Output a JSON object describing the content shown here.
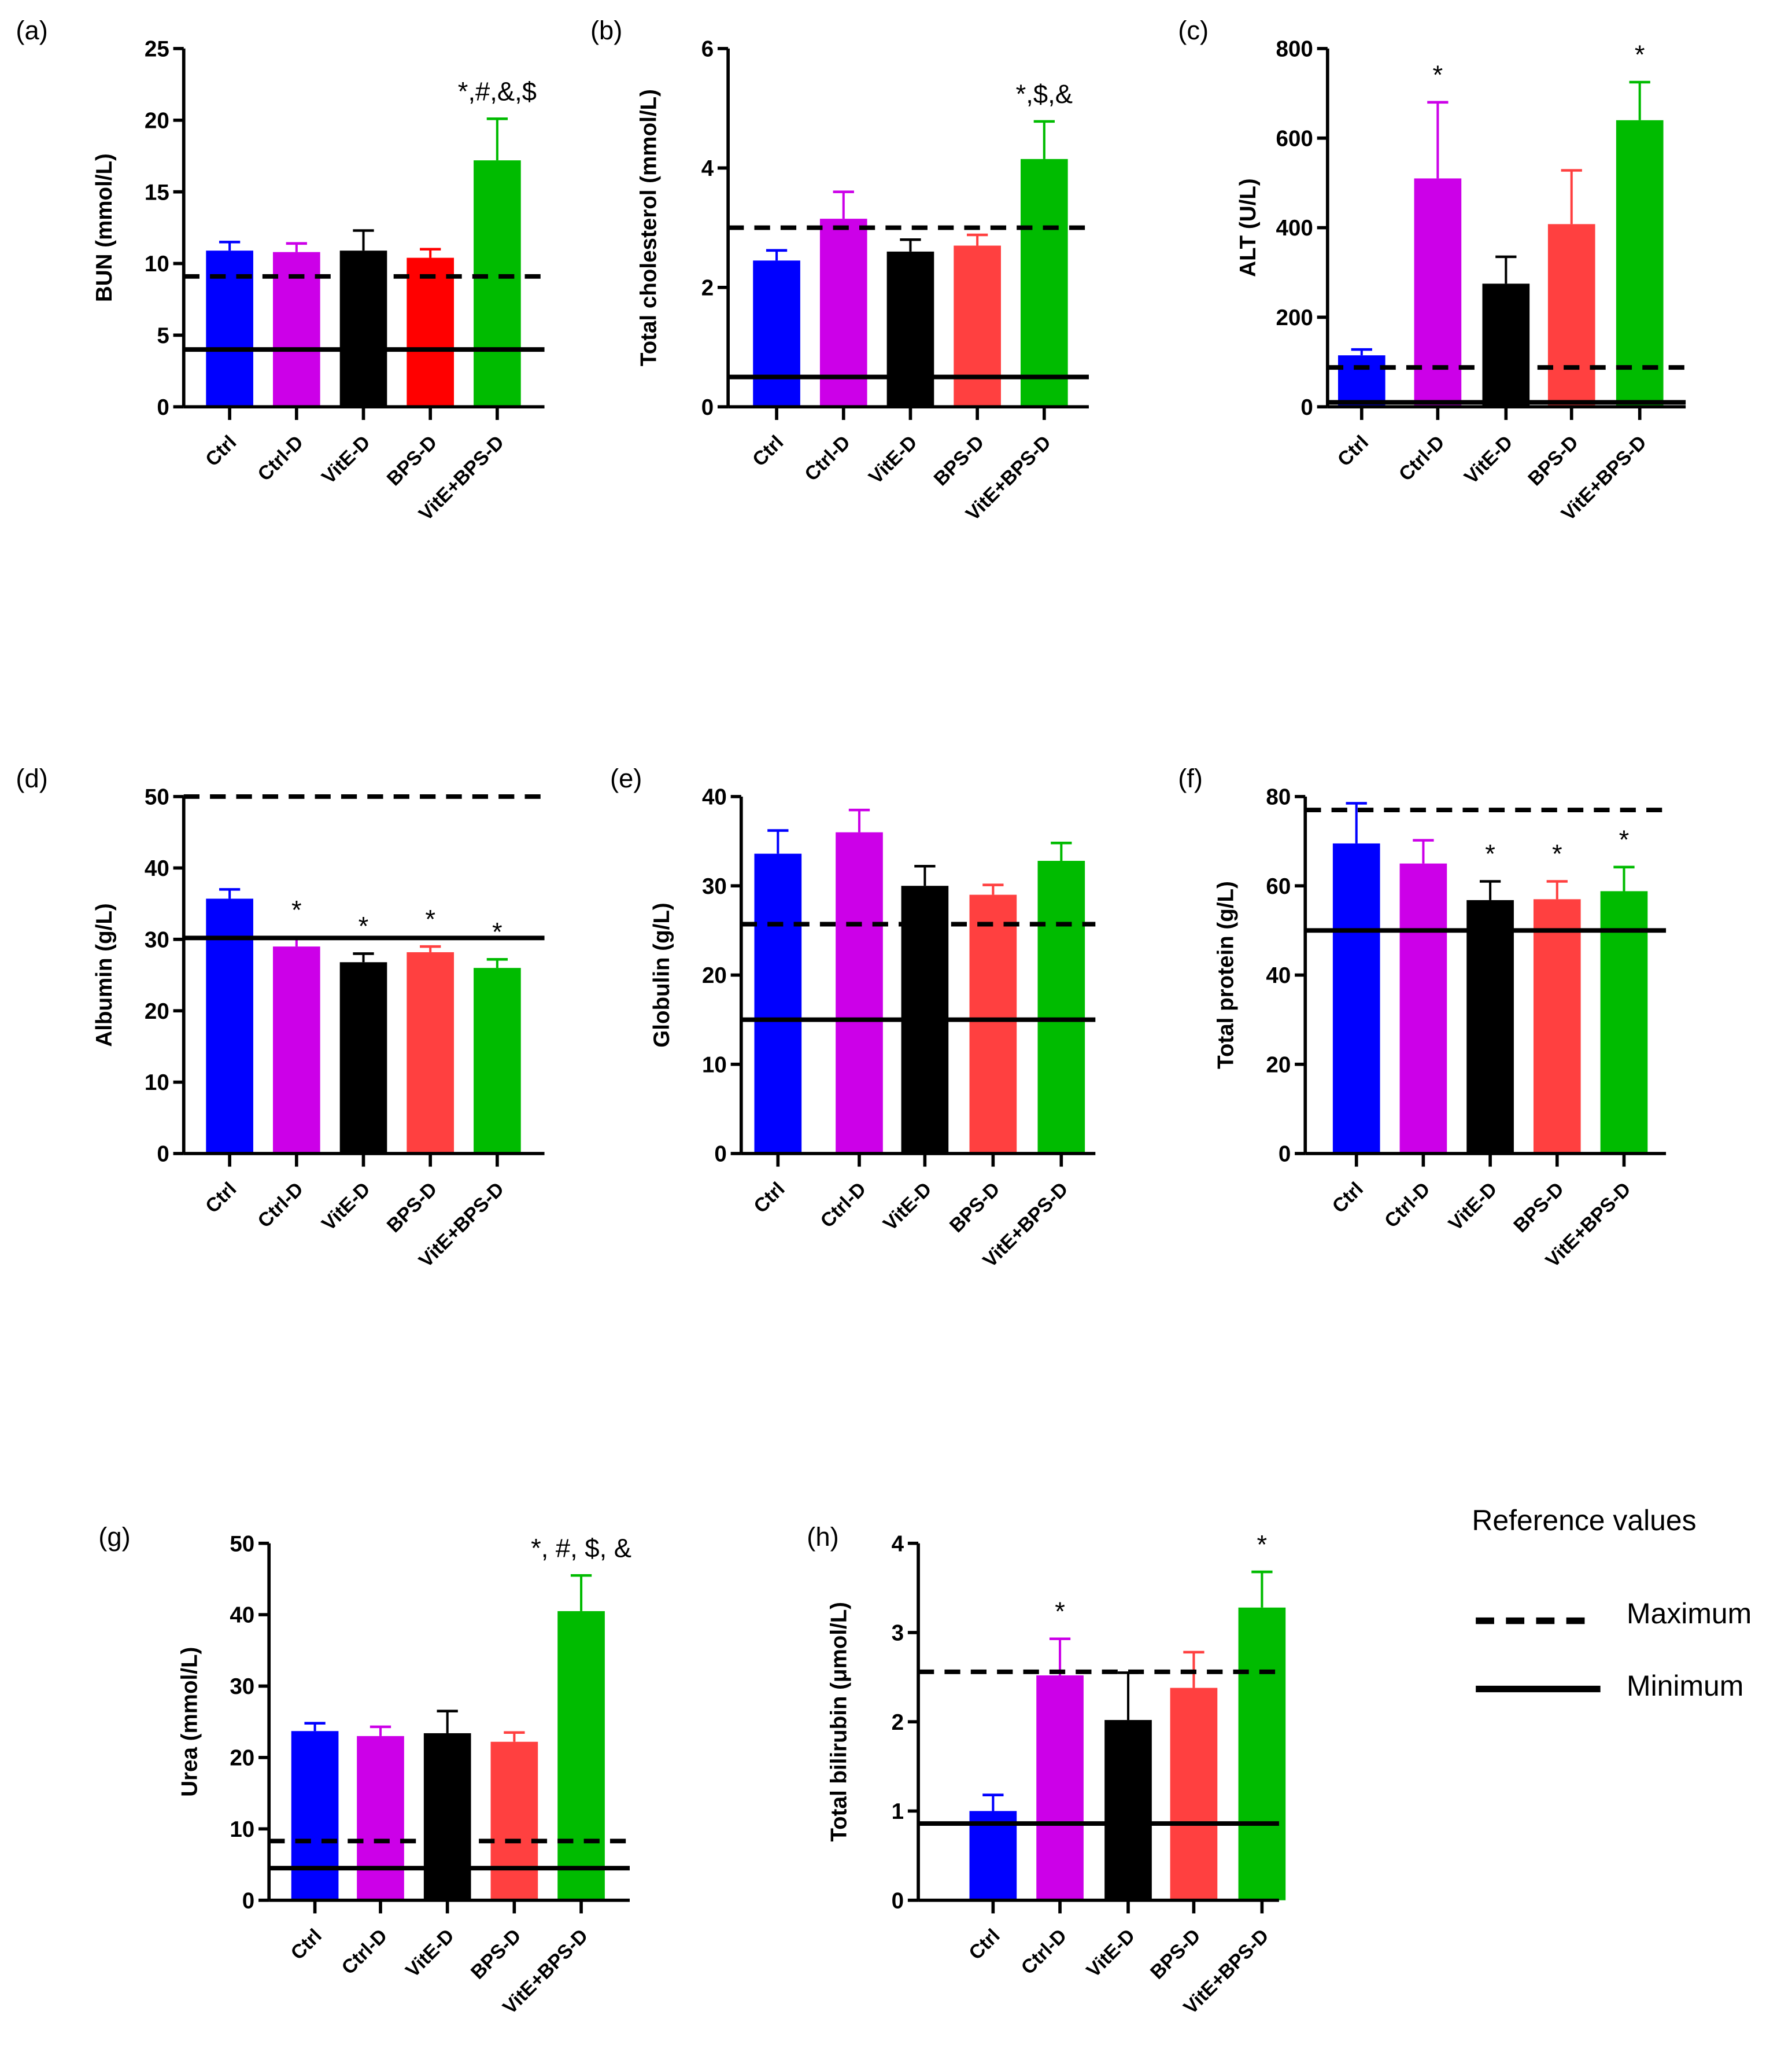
{
  "groups": [
    "Ctrl",
    "Ctrl-D",
    "VitE-D",
    "BPS-D",
    "VitE+BPS-D"
  ],
  "colors": {
    "Ctrl": "#0000ff",
    "Ctrl-D": "#cc00e8",
    "VitE-D": "#000000",
    "BPS-D": "#ff4040",
    "BPS-D-panel-a": "#ff0000",
    "VitE+BPS-D": "#00bb00"
  },
  "legend": {
    "title": "Reference values",
    "max_label": "Maximum",
    "min_label": "Minimum"
  },
  "chart_data": [
    {
      "panel": "(a)",
      "type": "bar",
      "ylabel": "BUN (mmol/L)",
      "ylim": [
        0,
        25
      ],
      "yticks": [
        0,
        5,
        10,
        15,
        20,
        25
      ],
      "values": [
        10.9,
        10.8,
        10.9,
        10.4,
        17.2
      ],
      "error_upper": [
        11.5,
        11.4,
        12.3,
        11.0,
        20.1
      ],
      "ref_max": 9.1,
      "ref_min": 4.0,
      "annotations": [
        "",
        "",
        "",
        "",
        "*,#,&,$"
      ]
    },
    {
      "panel": "(b)",
      "type": "bar",
      "ylabel": "Total cholesterol (mmol/L)",
      "ylim": [
        0,
        6
      ],
      "yticks": [
        0,
        2,
        4,
        6
      ],
      "values": [
        2.45,
        3.15,
        2.6,
        2.7,
        4.15
      ],
      "error_upper": [
        2.62,
        3.6,
        2.8,
        2.88,
        4.78
      ],
      "ref_max": 3.0,
      "ref_min": 0.5,
      "annotations": [
        "",
        "",
        "",
        "",
        "*,$,&"
      ]
    },
    {
      "panel": "(c)",
      "type": "bar",
      "ylabel": "ALT  (U/L)",
      "ylim": [
        0,
        800
      ],
      "yticks": [
        0,
        200,
        400,
        600,
        800
      ],
      "values": [
        115,
        510,
        275,
        408,
        640
      ],
      "error_upper": [
        128,
        680,
        335,
        528,
        725
      ],
      "ref_max": 88,
      "ref_min": 10,
      "annotations": [
        "",
        "*",
        "",
        "",
        "*"
      ]
    },
    {
      "panel": "(d)",
      "type": "bar",
      "ylabel": "Albumin (g/L)",
      "ylim": [
        0,
        50
      ],
      "yticks": [
        0,
        10,
        20,
        30,
        40,
        50
      ],
      "values": [
        35.7,
        29.0,
        26.8,
        28.2,
        26.0
      ],
      "error_upper": [
        37.0,
        30.3,
        28.0,
        29.0,
        27.2
      ],
      "ref_max": 50,
      "ref_min": 30.2,
      "annotations": [
        "",
        "*",
        "*",
        "*",
        "*"
      ]
    },
    {
      "panel": "(e)",
      "type": "bar",
      "ylabel": "Globulin (g/L)",
      "ylim": [
        0,
        40
      ],
      "yticks": [
        0,
        10,
        20,
        30,
        40
      ],
      "values": [
        33.6,
        36.0,
        30.0,
        29.0,
        32.8
      ],
      "error_upper": [
        36.2,
        38.5,
        32.2,
        30.1,
        34.8
      ],
      "ref_max": 25.7,
      "ref_min": 15.0,
      "annotations": [
        "",
        "",
        "",
        "",
        ""
      ]
    },
    {
      "panel": "(f)",
      "type": "bar",
      "ylabel": "Total protein (g/L)",
      "ylim": [
        0,
        80
      ],
      "yticks": [
        0,
        20,
        40,
        60,
        80
      ],
      "values": [
        69.5,
        65.0,
        56.8,
        57.0,
        58.8
      ],
      "error_upper": [
        78.5,
        70.2,
        61.0,
        61.0,
        64.2
      ],
      "ref_max": 77,
      "ref_min": 50,
      "annotations": [
        "",
        "",
        "*",
        "*",
        "*"
      ]
    },
    {
      "panel": "(g)",
      "type": "bar",
      "ylabel": "Urea (mmol/L)",
      "ylim": [
        0,
        50
      ],
      "yticks": [
        0,
        10,
        20,
        30,
        40,
        50
      ],
      "values": [
        23.7,
        23.0,
        23.4,
        22.2,
        40.5
      ],
      "error_upper": [
        24.8,
        24.3,
        26.5,
        23.5,
        45.5
      ],
      "ref_max": 8.3,
      "ref_min": 4.5,
      "annotations": [
        "",
        "",
        "",
        "",
        "*, #, $, &"
      ]
    },
    {
      "panel": "(h)",
      "type": "bar",
      "ylabel": "Total bilirubin (μmol/L)",
      "ylim": [
        0,
        4
      ],
      "yticks": [
        0,
        1,
        2,
        3,
        4
      ],
      "values": [
        1.0,
        2.52,
        2.02,
        2.38,
        3.28
      ],
      "error_upper": [
        1.18,
        2.93,
        2.55,
        2.78,
        3.68
      ],
      "ref_max": 2.56,
      "ref_min": 0.86,
      "annotations": [
        "",
        "*",
        "",
        "",
        "*"
      ]
    }
  ]
}
